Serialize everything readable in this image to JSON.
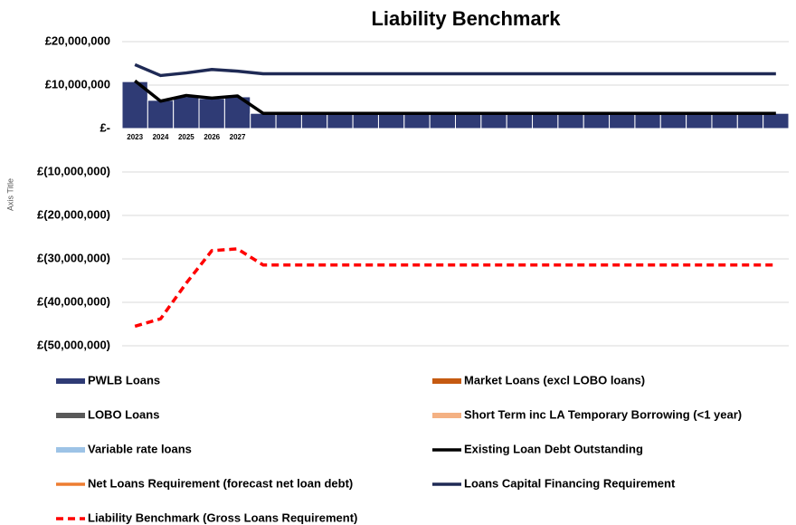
{
  "chart_data": {
    "type": "combo",
    "title": "Liability Benchmark",
    "y_axis_title": "Axis Title",
    "categories": [
      "2023",
      "2024",
      "2025",
      "2026",
      "2027",
      null,
      null,
      null,
      null,
      null,
      null,
      null,
      null,
      null,
      null,
      null,
      null,
      null,
      null,
      null,
      null,
      null,
      null,
      null,
      null,
      null
    ],
    "ylim": [
      -50000000,
      20000000
    ],
    "yticks": [
      {
        "value": 20000000,
        "label": "£20,000,000"
      },
      {
        "value": 10000000,
        "label": "£10,000,000"
      },
      {
        "value": 0,
        "label": "£-"
      },
      {
        "value": -10000000,
        "label": "£(10,000,000)"
      },
      {
        "value": -20000000,
        "label": "£(20,000,000)"
      },
      {
        "value": -30000000,
        "label": "£(30,000,000)"
      },
      {
        "value": -40000000,
        "label": "£(40,000,000)"
      },
      {
        "value": -50000000,
        "label": "£(50,000,000)"
      }
    ],
    "grid": true,
    "series": [
      {
        "name": "PWLB Loans",
        "color": "#2f3b75",
        "kind": "bar",
        "values": [
          10800000,
          6500000,
          7300000,
          6900000,
          7300000,
          3500000,
          3500000,
          3500000,
          3500000,
          3500000,
          3500000,
          3500000,
          3500000,
          3500000,
          3500000,
          3500000,
          3500000,
          3500000,
          3500000,
          3500000,
          3500000,
          3500000,
          3500000,
          3500000,
          3500000,
          3500000
        ]
      },
      {
        "name": "Market Loans (excl LOBO loans)",
        "color": "#c55a11",
        "kind": "bar",
        "values": [
          null,
          null,
          null,
          null,
          null,
          null,
          null,
          null,
          null,
          null,
          null,
          null,
          null,
          null,
          null,
          null,
          null,
          null,
          null,
          null,
          null,
          null,
          null,
          null,
          null,
          null
        ]
      },
      {
        "name": "LOBO Loans",
        "color": "#595959",
        "kind": "bar",
        "values": [
          null,
          null,
          null,
          null,
          null,
          null,
          null,
          null,
          null,
          null,
          null,
          null,
          null,
          null,
          null,
          null,
          null,
          null,
          null,
          null,
          null,
          null,
          null,
          null,
          null,
          null
        ]
      },
      {
        "name": "Short Term inc LA Temporary Borrowing (<1 year)",
        "color": "#f4b183",
        "kind": "bar",
        "values": [
          null,
          null,
          null,
          null,
          null,
          null,
          null,
          null,
          null,
          null,
          null,
          null,
          null,
          null,
          null,
          null,
          null,
          null,
          null,
          null,
          null,
          null,
          null,
          null,
          null,
          null
        ]
      },
      {
        "name": "Variable rate loans",
        "color": "#9dc3e6",
        "kind": "bar",
        "values": [
          null,
          null,
          null,
          null,
          null,
          null,
          null,
          null,
          null,
          null,
          null,
          null,
          null,
          null,
          null,
          null,
          null,
          null,
          null,
          null,
          null,
          null,
          null,
          null,
          null,
          null
        ]
      },
      {
        "name": "Existing Loan Debt Outstanding",
        "color": "#000000",
        "kind": "line",
        "values": [
          11000000,
          6300000,
          7600000,
          7000000,
          7500000,
          3500000,
          3500000,
          3500000,
          3500000,
          3500000,
          3500000,
          3500000,
          3500000,
          3500000,
          3500000,
          3500000,
          3500000,
          3500000,
          3500000,
          3500000,
          3500000,
          3500000,
          3500000,
          3500000,
          3500000,
          3500000
        ]
      },
      {
        "name": "Net Loans Requirement (forecast net loan debt)",
        "color": "#ed7d31",
        "kind": "line",
        "values": [
          null,
          null,
          null,
          null,
          null,
          null,
          null,
          null,
          null,
          null,
          null,
          null,
          null,
          null,
          null,
          null,
          null,
          null,
          null,
          null,
          null,
          null,
          null,
          null,
          null,
          null
        ]
      },
      {
        "name": "Loans Capital Financing Requirement",
        "color": "#1f2a55",
        "kind": "line",
        "values": [
          14700000,
          12200000,
          12800000,
          13600000,
          13200000,
          12600000,
          12600000,
          12600000,
          12600000,
          12600000,
          12600000,
          12600000,
          12600000,
          12600000,
          12600000,
          12600000,
          12600000,
          12600000,
          12600000,
          12600000,
          12600000,
          12600000,
          12600000,
          12600000,
          12600000,
          12600000
        ]
      },
      {
        "name": "Liability Benchmark (Gross Loans Requirement)",
        "color": "#ff0000",
        "kind": "line",
        "dashed": true,
        "values": [
          -45500000,
          -43800000,
          -35600000,
          -28100000,
          -27700000,
          -31400000,
          -31400000,
          -31400000,
          -31400000,
          -31400000,
          -31400000,
          -31400000,
          -31400000,
          -31400000,
          -31400000,
          -31400000,
          -31400000,
          -31400000,
          -31400000,
          -31400000,
          -31400000,
          -31400000,
          -31400000,
          -31400000,
          -31400000,
          -31400000
        ]
      }
    ]
  }
}
